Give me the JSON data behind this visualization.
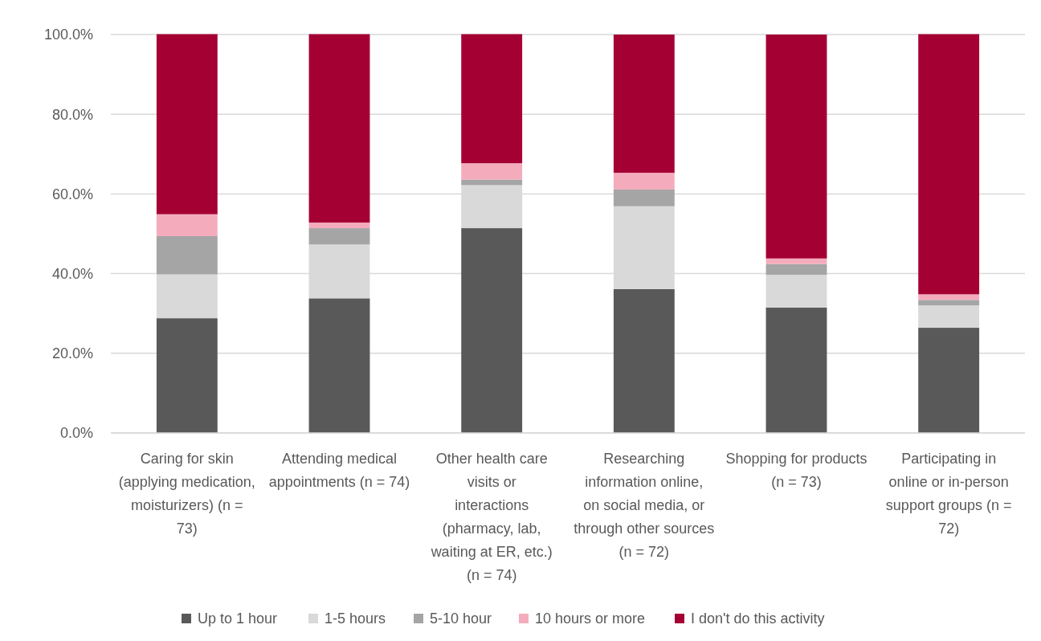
{
  "chart_data": {
    "type": "bar",
    "stacked": true,
    "categories": [
      "Caring for skin (applying medication, moisturizers) (n = 73)",
      "Attending medical appointments (n = 74)",
      "Other health care visits or interactions (pharmacy, lab, waiting at ER, etc.) (n = 74)",
      "Researching information online, on social media, or through other sources  (n = 72)",
      "Shopping for products (n = 73)",
      "Participating in online or in-person support groups (n = 72)"
    ],
    "series": [
      {
        "name": "Up to 1 hour",
        "color": "#595959",
        "values": [
          28.8,
          33.8,
          51.4,
          36.1,
          31.5,
          26.4
        ]
      },
      {
        "name": "1-5 hours",
        "color": "#d9d9d9",
        "values": [
          11.0,
          13.5,
          10.8,
          20.8,
          8.2,
          5.6
        ]
      },
      {
        "name": "5-10 hour",
        "color": "#a5a5a5",
        "values": [
          9.6,
          4.1,
          1.4,
          4.2,
          2.7,
          1.4
        ]
      },
      {
        "name": "10 hours or more",
        "color": "#f4acbd",
        "values": [
          5.5,
          1.4,
          4.1,
          4.2,
          1.4,
          1.4
        ]
      },
      {
        "name": "I don't do this activity",
        "color": "#a50034",
        "values": [
          45.2,
          47.3,
          32.4,
          34.7,
          56.2,
          65.3
        ]
      }
    ],
    "ylim": [
      0,
      100
    ],
    "yticks": [
      {
        "value": 0,
        "label": "0.0%"
      },
      {
        "value": 20,
        "label": "20.0%"
      },
      {
        "value": 40,
        "label": "40.0%"
      },
      {
        "value": 60,
        "label": "60.0%"
      },
      {
        "value": 80,
        "label": "80.0%"
      },
      {
        "value": 100,
        "label": "100.0%"
      }
    ],
    "grid": "y",
    "legend": "bottom"
  }
}
